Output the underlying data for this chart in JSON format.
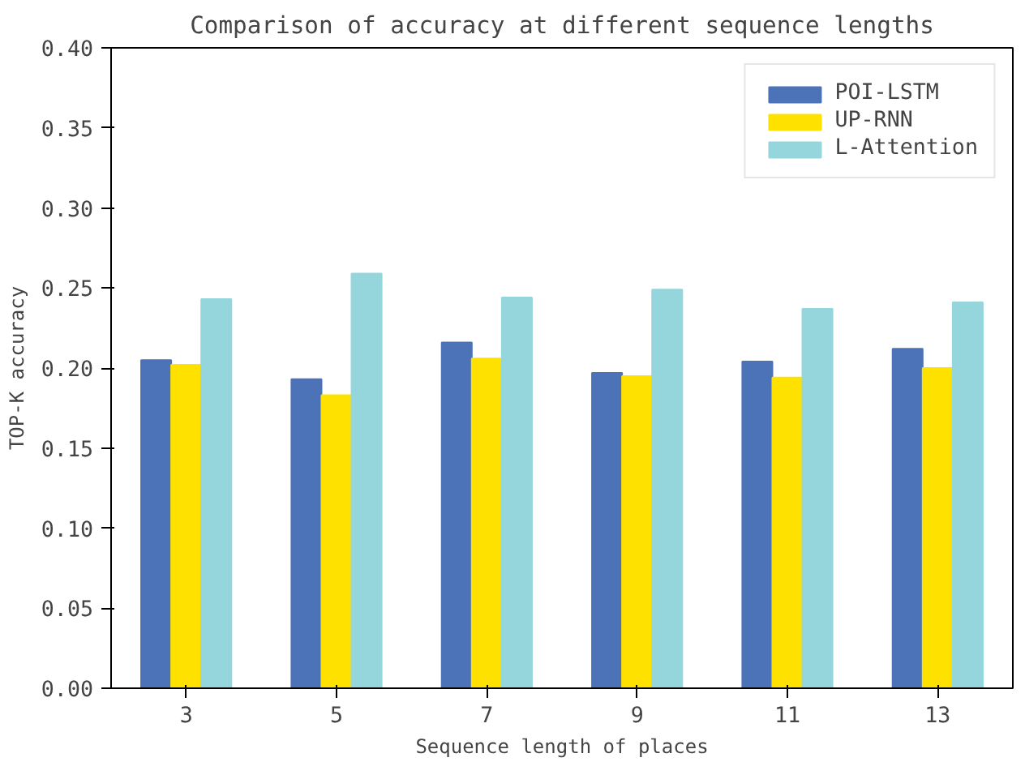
{
  "chart_data": {
    "type": "bar",
    "title": "Comparison of accuracy at different sequence lengths",
    "xlabel": "Sequence length of places",
    "ylabel": "TOP-K accuracy",
    "categories": [
      "3",
      "5",
      "7",
      "9",
      "11",
      "13"
    ],
    "series": [
      {
        "name": "POI-LSTM",
        "color": "#4c72b8",
        "values": [
          0.205,
          0.193,
          0.216,
          0.197,
          0.204,
          0.212
        ]
      },
      {
        "name": "UP-RNN",
        "color": "#ffe100",
        "values": [
          0.202,
          0.183,
          0.206,
          0.195,
          0.194,
          0.2
        ]
      },
      {
        "name": "L-Attention",
        "color": "#95d6dc",
        "values": [
          0.243,
          0.259,
          0.244,
          0.249,
          0.237,
          0.241
        ]
      }
    ],
    "ylim": [
      0,
      0.4
    ],
    "yticks": [
      {
        "value": 0,
        "label": "0.00"
      },
      {
        "value": 0.05,
        "label": "0.05"
      },
      {
        "value": 0.1,
        "label": "0.10"
      },
      {
        "value": 0.15,
        "label": "0.15"
      },
      {
        "value": 0.2,
        "label": "0.20"
      },
      {
        "value": 0.25,
        "label": "0.25"
      },
      {
        "value": 0.3,
        "label": "0.30"
      },
      {
        "value": 0.35,
        "label": "0.35"
      },
      {
        "value": 0.4,
        "label": "0.40"
      }
    ],
    "grid": false,
    "legend": "top right"
  }
}
